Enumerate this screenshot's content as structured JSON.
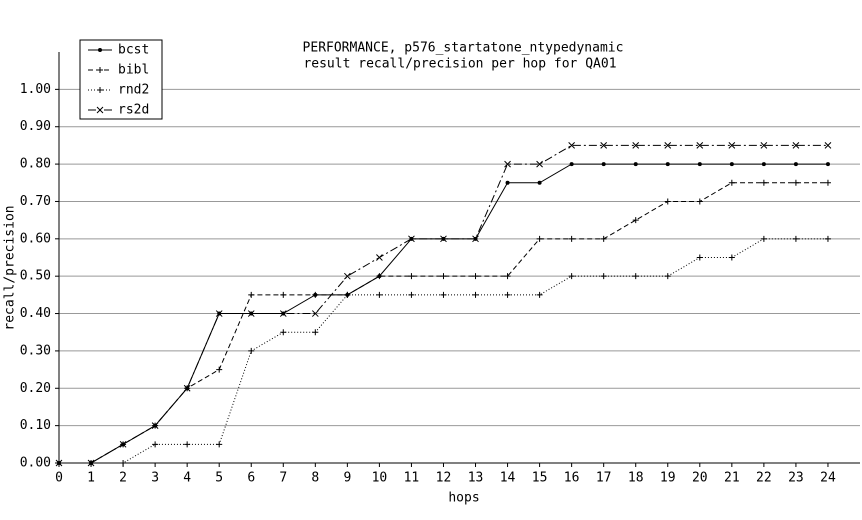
{
  "chart_data": {
    "type": "line",
    "title": "PERFORMANCE, p576_startatone_ntypedynamic",
    "subtitle": "result recall/precision per hop for QA01",
    "x_label": "hops",
    "y_label": "recall/precision",
    "x": [
      0,
      1,
      2,
      3,
      4,
      5,
      6,
      7,
      8,
      9,
      10,
      11,
      12,
      13,
      14,
      15,
      16,
      17,
      18,
      19,
      20,
      21,
      22,
      23,
      24
    ],
    "xlim": [
      0,
      25
    ],
    "xticks": [
      0,
      1,
      2,
      3,
      4,
      5,
      6,
      7,
      8,
      9,
      10,
      11,
      12,
      13,
      14,
      15,
      16,
      17,
      18,
      19,
      20,
      21,
      22,
      23,
      24
    ],
    "ylim": [
      0,
      1.1
    ],
    "yticks": [
      {
        "value": 0,
        "label": "0.00"
      },
      {
        "value": 0.1,
        "label": "0.10"
      },
      {
        "value": 0.2,
        "label": "0.20"
      },
      {
        "value": 0.3,
        "label": "0.30"
      },
      {
        "value": 0.4,
        "label": "0.40"
      },
      {
        "value": 0.5,
        "label": "0.50"
      },
      {
        "value": 0.6,
        "label": "0.60"
      },
      {
        "value": 0.7,
        "label": "0.70"
      },
      {
        "value": 0.8,
        "label": "0.80"
      },
      {
        "value": 0.9,
        "label": "0.90"
      },
      {
        "value": 1,
        "label": "1.00"
      }
    ],
    "grid": true,
    "legend": "top-left",
    "series": [
      {
        "name": "bcst",
        "color": "#000000",
        "dash": "solid",
        "marker": "dot",
        "values": [
          0,
          0,
          0.05,
          0.1,
          0.2,
          0.4,
          0.4,
          0.4,
          0.45,
          0.45,
          0.5,
          0.6,
          0.6,
          0.6,
          0.75,
          0.75,
          0.8,
          0.8,
          0.8,
          0.8,
          0.8,
          0.8,
          0.8,
          0.8,
          0.8
        ]
      },
      {
        "name": "bibl",
        "color": "#000000",
        "dash": "dashed",
        "marker": "plus",
        "values": [
          0,
          0,
          0.05,
          0.1,
          0.2,
          0.25,
          0.45,
          0.45,
          0.45,
          0.45,
          0.5,
          0.5,
          0.5,
          0.5,
          0.5,
          0.6,
          0.6,
          0.6,
          0.65,
          0.7,
          0.7,
          0.75,
          0.75,
          0.75,
          0.75
        ]
      },
      {
        "name": "rnd2",
        "color": "#000000",
        "dash": "dotted",
        "marker": "plus",
        "values": [
          0,
          0,
          0,
          0.05,
          0.05,
          0.05,
          0.3,
          0.35,
          0.35,
          0.45,
          0.45,
          0.45,
          0.45,
          0.45,
          0.45,
          0.45,
          0.5,
          0.5,
          0.5,
          0.5,
          0.55,
          0.55,
          0.6,
          0.6,
          0.6
        ]
      },
      {
        "name": "rs2d",
        "color": "#000000",
        "dash": "dashdot",
        "marker": "x",
        "values": [
          0,
          0,
          0.05,
          0.1,
          0.2,
          0.4,
          0.4,
          0.4,
          0.4,
          0.5,
          0.55,
          0.6,
          0.6,
          0.6,
          0.8,
          0.8,
          0.85,
          0.85,
          0.85,
          0.85,
          0.85,
          0.85,
          0.85,
          0.85,
          0.85
        ]
      }
    ]
  }
}
